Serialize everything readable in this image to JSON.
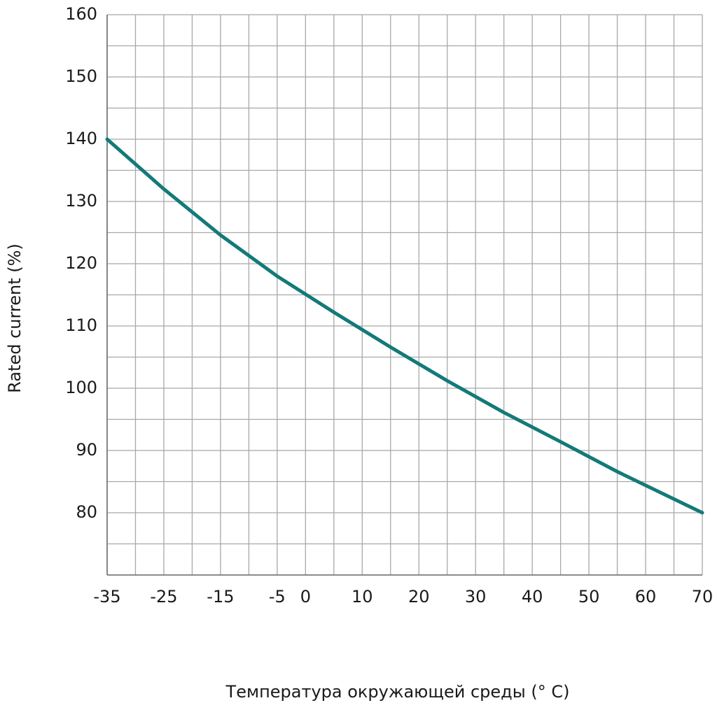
{
  "chart_data": {
    "type": "line",
    "x_label": "Температура окружающей среды (° C)",
    "y_label": "Rated current (%)",
    "series": [
      {
        "color": "#137a78",
        "x": [
          -35,
          -25,
          -15,
          -5,
          5,
          15,
          25,
          35,
          45,
          55,
          70
        ],
        "values": [
          140,
          132,
          124.6,
          118,
          112.2,
          106.6,
          101.2,
          96.1,
          91.4,
          86.6,
          80
        ]
      }
    ],
    "xlim": [
      -35,
      70
    ],
    "xticks": [
      -35,
      -25,
      -15,
      -5,
      0,
      10,
      20,
      30,
      40,
      50,
      60,
      70
    ],
    "xgrid": [
      -35,
      -30,
      -25,
      -20,
      -15,
      -10,
      -5,
      0,
      5,
      10,
      15,
      20,
      25,
      30,
      35,
      40,
      45,
      50,
      55,
      60,
      65,
      70
    ],
    "ylim": [
      70,
      160
    ],
    "yticks": [
      80,
      90,
      100,
      110,
      120,
      130,
      140,
      150,
      160
    ],
    "ygrid": [
      75,
      80,
      85,
      90,
      95,
      100,
      105,
      110,
      115,
      120,
      125,
      130,
      135,
      140,
      145,
      150,
      155,
      160
    ],
    "grid": true
  }
}
